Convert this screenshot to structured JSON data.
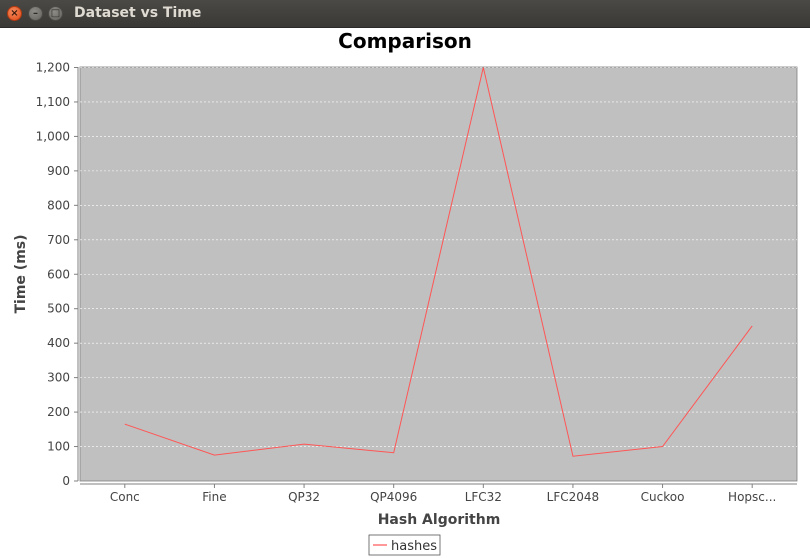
{
  "window": {
    "title": "Dataset vs Time",
    "close_glyph": "×",
    "minimize_glyph": "–",
    "maximize_glyph": "□"
  },
  "chart_data": {
    "type": "line",
    "title": "Comparison",
    "xlabel": "Hash Algorithm",
    "ylabel": "Time (ms)",
    "categories": [
      "Conc",
      "Fine",
      "QP32",
      "QP4096",
      "LFC32",
      "LFC2048",
      "Cuckoo",
      "Hopsc..."
    ],
    "series": [
      {
        "name": "hashes",
        "values": [
          165,
          75,
          107,
          82,
          1200,
          72,
          100,
          450
        ],
        "color": "#ff5555"
      }
    ],
    "ylim": [
      0,
      1200
    ],
    "yticks": [
      0,
      100,
      200,
      300,
      400,
      500,
      600,
      700,
      800,
      900,
      1000,
      1100,
      1200
    ],
    "ytick_labels": [
      "0",
      "100",
      "200",
      "300",
      "400",
      "500",
      "600",
      "700",
      "800",
      "900",
      "1,000",
      "1,100",
      "1,200"
    ],
    "grid": true,
    "plot_background": "#c0c0c0",
    "legend_position": "bottom-center"
  }
}
